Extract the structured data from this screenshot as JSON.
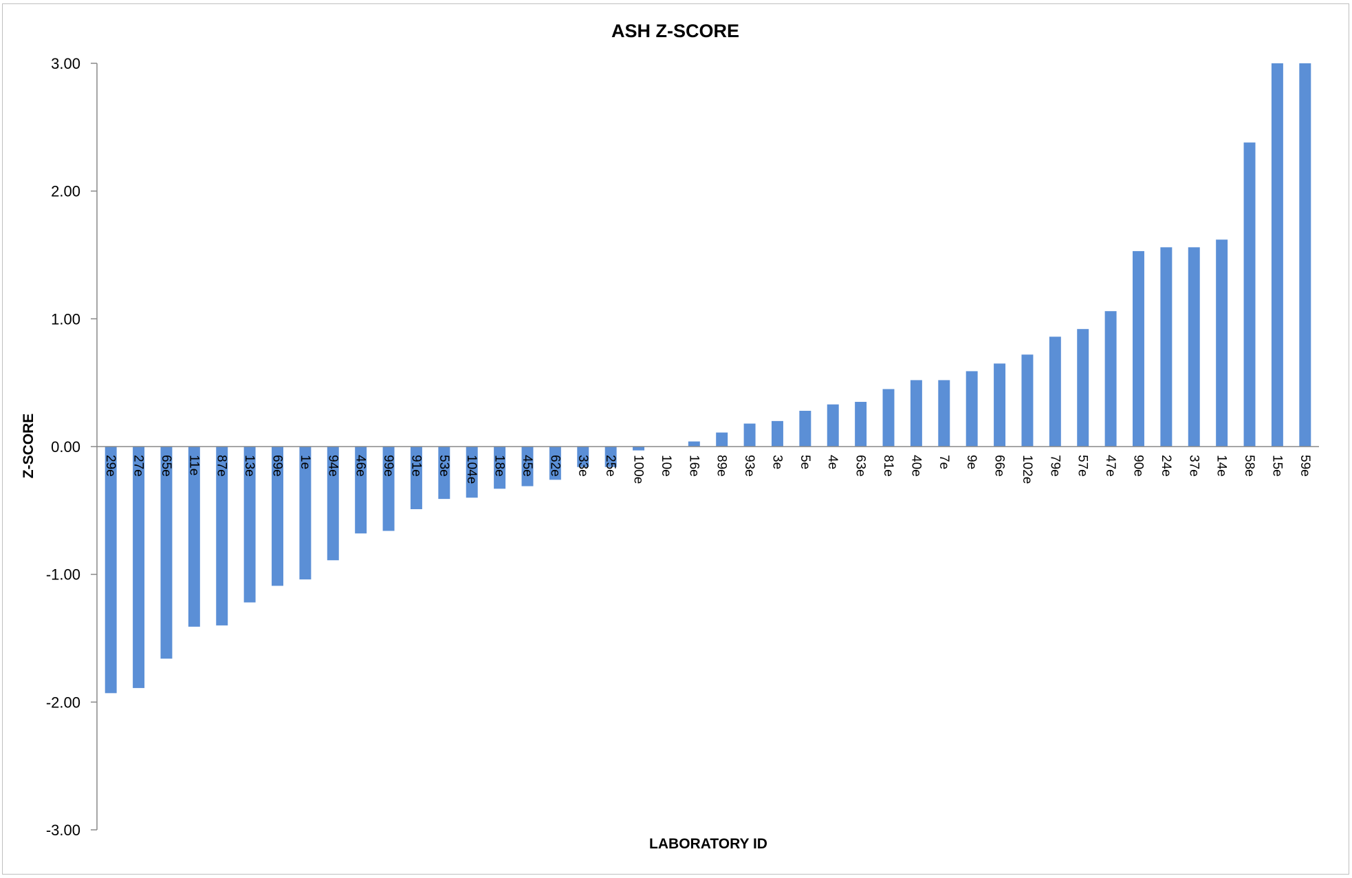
{
  "chart_data": {
    "type": "bar",
    "title": "ASH Z-SCORE",
    "xlabel": "LABORATORY ID",
    "ylabel": "Z-SCORE",
    "ylim": [
      -3,
      3
    ],
    "yticks": [
      3.0,
      2.0,
      1.0,
      0.0,
      -1.0,
      -2.0,
      -3.0
    ],
    "ytick_labels": [
      "3.00",
      "2.00",
      "1.00",
      "0.00",
      "-1.00",
      "-2.00",
      "-3.00"
    ],
    "grid": false,
    "legend": "none",
    "bar_color": "#5B8FD6",
    "categories": [
      "29e",
      "27e",
      "65e",
      "11e",
      "87e",
      "13e",
      "69e",
      "1e",
      "94e",
      "46e",
      "99e",
      "91e",
      "53e",
      "104e",
      "18e",
      "45e",
      "62e",
      "33e",
      "25e",
      "100e",
      "10e",
      "16e",
      "89e",
      "93e",
      "3e",
      "5e",
      "4e",
      "63e",
      "81e",
      "40e",
      "7e",
      "9e",
      "66e",
      "102e",
      "79e",
      "57e",
      "47e",
      "90e",
      "24e",
      "37e",
      "14e",
      "58e",
      "15e",
      "59e"
    ],
    "values": [
      -1.93,
      -1.89,
      -1.66,
      -1.41,
      -1.4,
      -1.22,
      -1.09,
      -1.04,
      -0.89,
      -0.68,
      -0.66,
      -0.49,
      -0.41,
      -0.4,
      -0.33,
      -0.31,
      -0.26,
      -0.16,
      -0.16,
      -0.03,
      0.0,
      0.04,
      0.11,
      0.18,
      0.2,
      0.28,
      0.33,
      0.35,
      0.45,
      0.52,
      0.52,
      0.59,
      0.65,
      0.72,
      0.86,
      0.92,
      1.06,
      1.53,
      1.56,
      1.56,
      1.62,
      2.38,
      3.0,
      3.0
    ]
  }
}
